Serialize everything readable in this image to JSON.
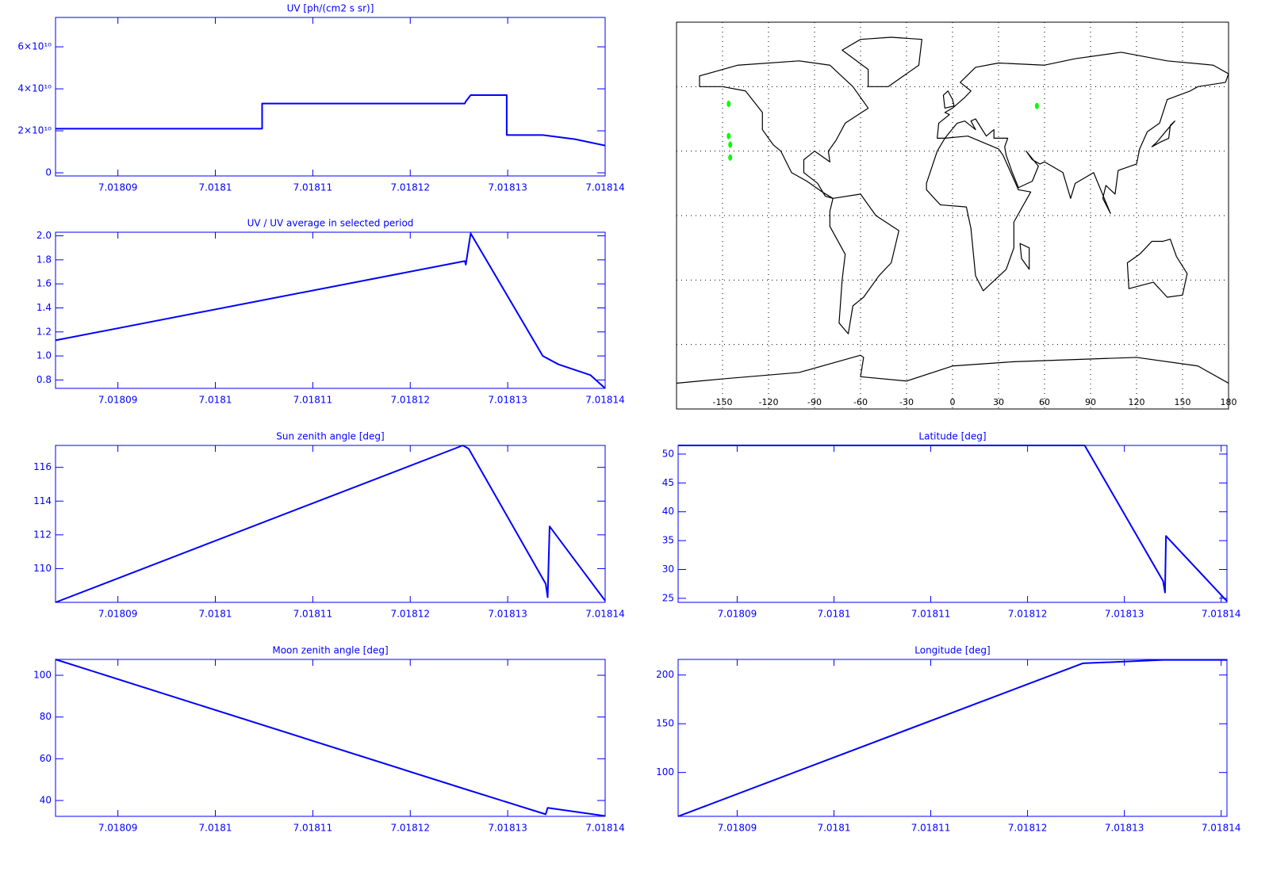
{
  "chart_data": [
    {
      "type": "line",
      "title": "UV [ph/(cm2 s sr)]",
      "color": "#0000ff",
      "x": [
        7.0180836,
        7.0181048,
        7.0181048,
        7.0181256,
        7.0181257,
        7.0181262,
        7.0181299,
        7.0181299,
        7.0181336,
        7.0181369,
        7.01814
      ],
      "values": [
        21000000000,
        21000000000,
        33000000000,
        33000000000,
        34000000000,
        37000000000,
        37000000000,
        18000000000,
        18000000000,
        16000000000,
        13000000000
      ],
      "xlim": [
        7.0180836,
        7.01814
      ],
      "xticks": [
        7.01809,
        7.0181,
        7.01811,
        7.01812,
        7.01813,
        7.01814
      ],
      "ylim": [
        -1500000000,
        74000000000
      ],
      "yticks": [
        0,
        {
          "value": 20000000000,
          "label": "2×10¹⁰"
        },
        {
          "value": 40000000000,
          "label": "4×10¹⁰"
        },
        {
          "value": 60000000000,
          "label": "6×10¹⁰"
        }
      ]
    },
    {
      "type": "line",
      "title": "UV / UV average in selected period",
      "color": "#0000ff",
      "x": [
        7.0180836,
        7.0181256,
        7.0181257,
        7.0181262,
        7.0181336,
        7.0181352,
        7.0181385,
        7.01814
      ],
      "values": [
        1.13,
        1.79,
        1.76,
        2.02,
        1.0,
        0.93,
        0.84,
        0.73
      ],
      "xlim": [
        7.0180836,
        7.01814
      ],
      "xticks": [
        7.01809,
        7.0181,
        7.01811,
        7.01812,
        7.01813,
        7.01814
      ],
      "ylim": [
        0.73,
        2.03
      ],
      "yticks": [
        0.8,
        {
          "value": 1,
          "label": "1.0"
        },
        1.2,
        1.4,
        1.6,
        1.8,
        {
          "value": 2,
          "label": "2.0"
        }
      ]
    },
    {
      "type": "line",
      "title": "Sun zenith angle [deg]",
      "color": "#0000ff",
      "x": [
        7.0180836,
        7.0181254,
        7.018126,
        7.0181339,
        7.0181341,
        7.0181343,
        7.01814
      ],
      "values": [
        108.0,
        117.3,
        117.1,
        109.1,
        108.3,
        112.5,
        108.1
      ],
      "xlim": [
        7.0180836,
        7.01814
      ],
      "xticks": [
        7.01809,
        7.0181,
        7.01811,
        7.01812,
        7.01813,
        7.01814
      ],
      "ylim": [
        108.0,
        117.3
      ],
      "yticks": [
        110,
        112,
        114,
        116
      ]
    },
    {
      "type": "line",
      "title": "Moon zenith angle [deg]",
      "color": "#0000ff",
      "x": [
        7.0180836,
        7.0181256,
        7.0181339,
        7.0181341,
        7.01814
      ],
      "values": [
        107.6,
        45.5,
        33.4,
        36.5,
        32.6
      ],
      "xlim": [
        7.0180836,
        7.01814
      ],
      "xticks": [
        7.01809,
        7.0181,
        7.01811,
        7.01812,
        7.01813,
        7.01814
      ],
      "ylim": [
        32.4,
        107.6
      ],
      "yticks": [
        40,
        60,
        80,
        100
      ]
    },
    {
      "type": "map",
      "xlim": [
        -180,
        180
      ],
      "ylim": [
        -90,
        90
      ],
      "xticks": [
        -150,
        -120,
        -90,
        -60,
        -30,
        0,
        30,
        60,
        90,
        120,
        150,
        180
      ],
      "yticks": [
        -60,
        -30,
        0,
        30,
        60
      ],
      "series": [
        {
          "color": "#00ff00",
          "x": [
            -146,
            -146,
            -145,
            -145,
            55
          ],
          "values": [
            52,
            37,
            33,
            27,
            51
          ]
        }
      ]
    },
    {
      "type": "line",
      "title": "Latitude [deg]",
      "color": "#0000ff",
      "x": [
        7.0180839,
        7.0181259,
        7.018134,
        7.0181342,
        7.0181343,
        7.0181406
      ],
      "values": [
        51.5,
        51.5,
        28,
        26,
        35.8,
        24.5
      ],
      "xlim": [
        7.0180839,
        7.0181406
      ],
      "xticks": [
        7.01809,
        7.0181,
        7.01811,
        7.01812,
        7.01813,
        7.01814
      ],
      "ylim": [
        24.3,
        51.5
      ],
      "yticks": [
        25,
        30,
        35,
        40,
        45,
        50
      ]
    },
    {
      "type": "line",
      "title": "Longitude [deg]",
      "color": "#0000ff",
      "x": [
        7.0180839,
        7.0181257,
        7.018134,
        7.0181406
      ],
      "values": [
        55,
        212,
        215.5,
        215.5
      ],
      "xlim": [
        7.0180839,
        7.0181406
      ],
      "xticks": [
        7.01809,
        7.0181,
        7.01811,
        7.01812,
        7.01813,
        7.01814
      ],
      "ylim": [
        55,
        216
      ],
      "yticks": [
        100,
        150,
        200
      ]
    }
  ]
}
